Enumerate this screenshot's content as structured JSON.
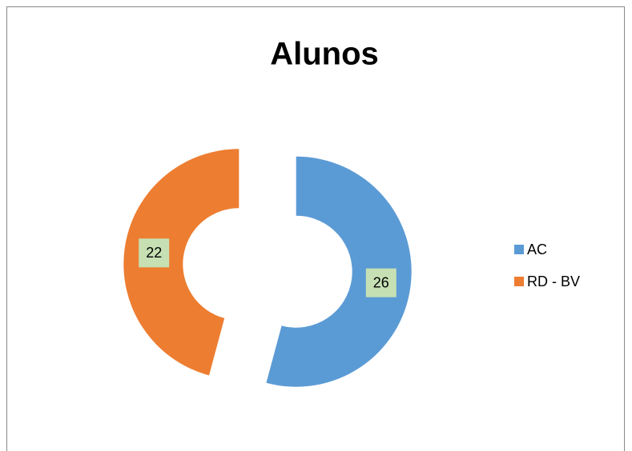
{
  "chart_data": {
    "type": "donut",
    "title": "Alunos",
    "categories": [
      "AC",
      "RD - BV"
    ],
    "series": [
      {
        "values": [
          26,
          22
        ],
        "colors": [
          "#5b9bd5",
          "#ed7d31"
        ]
      }
    ],
    "legend": "right",
    "exploded": true
  }
}
